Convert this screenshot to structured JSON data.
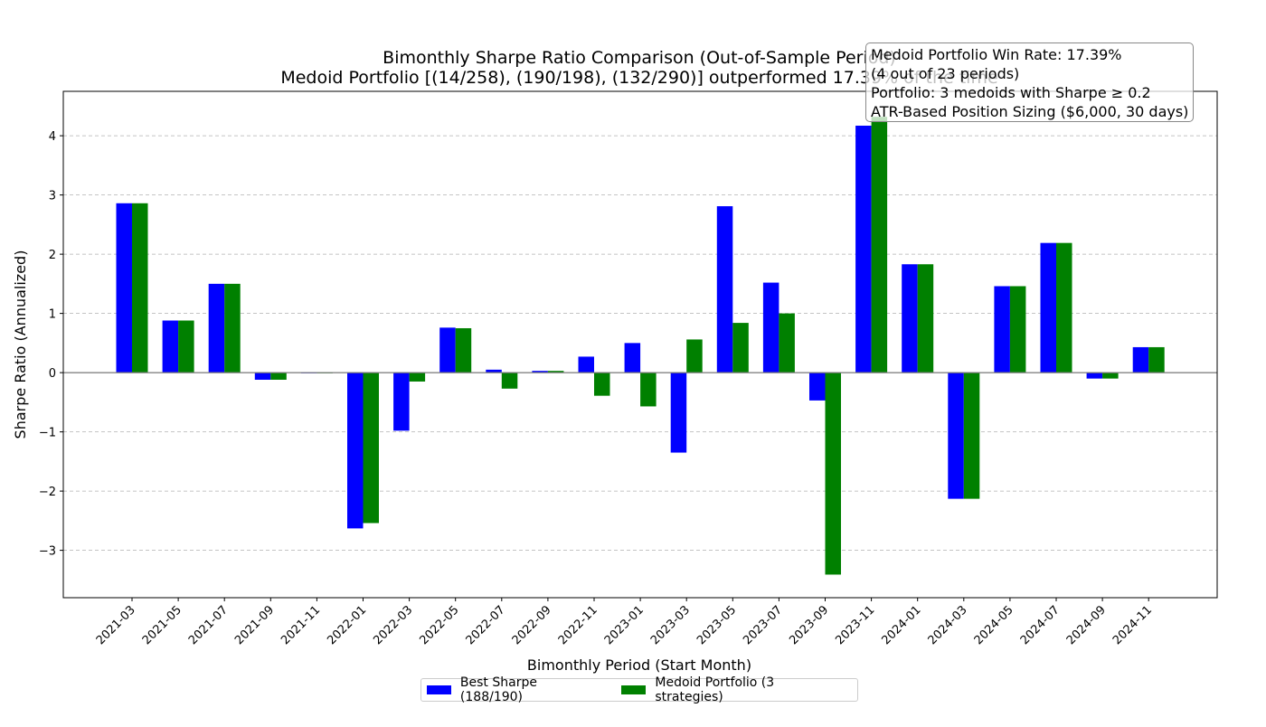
{
  "chart_data": {
    "type": "bar",
    "title": "Bimonthly Sharpe Ratio Comparison (Out-of-Sample Period)",
    "subtitle": "Medoid Portfolio [(14/258), (190/198), (132/290)] outperformed 17.39% of the time",
    "xlabel": "Bimonthly Period (Start Month)",
    "ylabel": "Sharpe Ratio (Annualized)",
    "ylim": [
      -3.8,
      4.75
    ],
    "yticks": [
      -3,
      -2,
      -1,
      0,
      1,
      2,
      3,
      4
    ],
    "ytick_labels": [
      "−3",
      "−2",
      "−1",
      "0",
      "1",
      "2",
      "3",
      "4"
    ],
    "grid": "horizontal dashed",
    "legend_position": "bottom-center",
    "categories": [
      "2021-03",
      "2021-05",
      "2021-07",
      "2021-09",
      "2021-11",
      "2022-01",
      "2022-03",
      "2022-05",
      "2022-07",
      "2022-09",
      "2022-11",
      "2023-01",
      "2023-03",
      "2023-05",
      "2023-07",
      "2023-09",
      "2023-11",
      "2024-01",
      "2024-03",
      "2024-05",
      "2024-07",
      "2024-09",
      "2024-11"
    ],
    "series": [
      {
        "name": "Best Sharpe (188/190)",
        "color": "#0000ff",
        "values": [
          2.86,
          0.88,
          1.5,
          -0.12,
          -0.01,
          -2.63,
          -0.98,
          0.76,
          0.05,
          0.03,
          0.27,
          0.5,
          -1.35,
          2.81,
          1.52,
          -0.47,
          4.17,
          1.83,
          -2.13,
          1.46,
          2.19,
          -0.1,
          0.43
        ]
      },
      {
        "name": "Medoid Portfolio (3 strategies)",
        "color": "#008000",
        "values": [
          2.86,
          0.88,
          1.5,
          -0.12,
          -0.01,
          -2.54,
          -0.15,
          0.75,
          -0.27,
          0.03,
          -0.39,
          -0.57,
          0.56,
          0.84,
          1.0,
          -3.41,
          4.32,
          1.83,
          -2.13,
          1.46,
          2.19,
          -0.1,
          0.43
        ]
      }
    ],
    "annotation_box": {
      "lines": [
        "Medoid Portfolio Win Rate: 17.39%",
        "(4 out of 23 periods)",
        "Portfolio: 3 medoids with Sharpe ≥ 0.2",
        "ATR-Based Position Sizing ($6,000, 30 days)"
      ]
    }
  }
}
